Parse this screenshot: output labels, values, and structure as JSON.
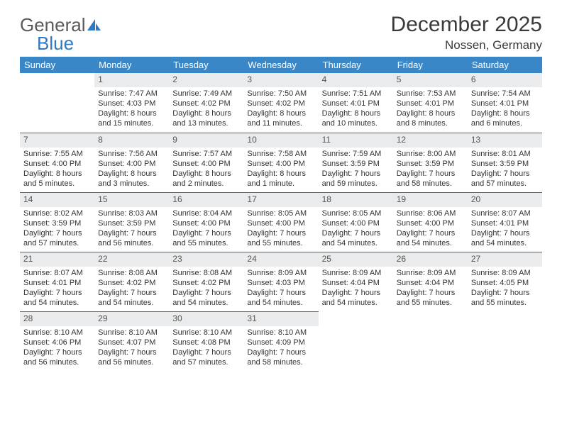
{
  "brand": {
    "part1": "General",
    "part2": "Blue"
  },
  "title": {
    "month": "December 2025",
    "location": "Nossen, Germany"
  },
  "colors": {
    "header_bg": "#3a87c8",
    "header_text": "#ffffff",
    "daynum_bg": "#e9ebec",
    "row_divider": "#2f6fa8",
    "brand_gray": "#5a5a5a",
    "brand_blue": "#2f78c4"
  },
  "weekdays": [
    "Sunday",
    "Monday",
    "Tuesday",
    "Wednesday",
    "Thursday",
    "Friday",
    "Saturday"
  ],
  "weeks": [
    [
      null,
      {
        "n": "1",
        "sr": "Sunrise: 7:47 AM",
        "ss": "Sunset: 4:03 PM",
        "d1": "Daylight: 8 hours",
        "d2": "and 15 minutes."
      },
      {
        "n": "2",
        "sr": "Sunrise: 7:49 AM",
        "ss": "Sunset: 4:02 PM",
        "d1": "Daylight: 8 hours",
        "d2": "and 13 minutes."
      },
      {
        "n": "3",
        "sr": "Sunrise: 7:50 AM",
        "ss": "Sunset: 4:02 PM",
        "d1": "Daylight: 8 hours",
        "d2": "and 11 minutes."
      },
      {
        "n": "4",
        "sr": "Sunrise: 7:51 AM",
        "ss": "Sunset: 4:01 PM",
        "d1": "Daylight: 8 hours",
        "d2": "and 10 minutes."
      },
      {
        "n": "5",
        "sr": "Sunrise: 7:53 AM",
        "ss": "Sunset: 4:01 PM",
        "d1": "Daylight: 8 hours",
        "d2": "and 8 minutes."
      },
      {
        "n": "6",
        "sr": "Sunrise: 7:54 AM",
        "ss": "Sunset: 4:01 PM",
        "d1": "Daylight: 8 hours",
        "d2": "and 6 minutes."
      }
    ],
    [
      {
        "n": "7",
        "sr": "Sunrise: 7:55 AM",
        "ss": "Sunset: 4:00 PM",
        "d1": "Daylight: 8 hours",
        "d2": "and 5 minutes."
      },
      {
        "n": "8",
        "sr": "Sunrise: 7:56 AM",
        "ss": "Sunset: 4:00 PM",
        "d1": "Daylight: 8 hours",
        "d2": "and 3 minutes."
      },
      {
        "n": "9",
        "sr": "Sunrise: 7:57 AM",
        "ss": "Sunset: 4:00 PM",
        "d1": "Daylight: 8 hours",
        "d2": "and 2 minutes."
      },
      {
        "n": "10",
        "sr": "Sunrise: 7:58 AM",
        "ss": "Sunset: 4:00 PM",
        "d1": "Daylight: 8 hours",
        "d2": "and 1 minute."
      },
      {
        "n": "11",
        "sr": "Sunrise: 7:59 AM",
        "ss": "Sunset: 3:59 PM",
        "d1": "Daylight: 7 hours",
        "d2": "and 59 minutes."
      },
      {
        "n": "12",
        "sr": "Sunrise: 8:00 AM",
        "ss": "Sunset: 3:59 PM",
        "d1": "Daylight: 7 hours",
        "d2": "and 58 minutes."
      },
      {
        "n": "13",
        "sr": "Sunrise: 8:01 AM",
        "ss": "Sunset: 3:59 PM",
        "d1": "Daylight: 7 hours",
        "d2": "and 57 minutes."
      }
    ],
    [
      {
        "n": "14",
        "sr": "Sunrise: 8:02 AM",
        "ss": "Sunset: 3:59 PM",
        "d1": "Daylight: 7 hours",
        "d2": "and 57 minutes."
      },
      {
        "n": "15",
        "sr": "Sunrise: 8:03 AM",
        "ss": "Sunset: 3:59 PM",
        "d1": "Daylight: 7 hours",
        "d2": "and 56 minutes."
      },
      {
        "n": "16",
        "sr": "Sunrise: 8:04 AM",
        "ss": "Sunset: 4:00 PM",
        "d1": "Daylight: 7 hours",
        "d2": "and 55 minutes."
      },
      {
        "n": "17",
        "sr": "Sunrise: 8:05 AM",
        "ss": "Sunset: 4:00 PM",
        "d1": "Daylight: 7 hours",
        "d2": "and 55 minutes."
      },
      {
        "n": "18",
        "sr": "Sunrise: 8:05 AM",
        "ss": "Sunset: 4:00 PM",
        "d1": "Daylight: 7 hours",
        "d2": "and 54 minutes."
      },
      {
        "n": "19",
        "sr": "Sunrise: 8:06 AM",
        "ss": "Sunset: 4:00 PM",
        "d1": "Daylight: 7 hours",
        "d2": "and 54 minutes."
      },
      {
        "n": "20",
        "sr": "Sunrise: 8:07 AM",
        "ss": "Sunset: 4:01 PM",
        "d1": "Daylight: 7 hours",
        "d2": "and 54 minutes."
      }
    ],
    [
      {
        "n": "21",
        "sr": "Sunrise: 8:07 AM",
        "ss": "Sunset: 4:01 PM",
        "d1": "Daylight: 7 hours",
        "d2": "and 54 minutes."
      },
      {
        "n": "22",
        "sr": "Sunrise: 8:08 AM",
        "ss": "Sunset: 4:02 PM",
        "d1": "Daylight: 7 hours",
        "d2": "and 54 minutes."
      },
      {
        "n": "23",
        "sr": "Sunrise: 8:08 AM",
        "ss": "Sunset: 4:02 PM",
        "d1": "Daylight: 7 hours",
        "d2": "and 54 minutes."
      },
      {
        "n": "24",
        "sr": "Sunrise: 8:09 AM",
        "ss": "Sunset: 4:03 PM",
        "d1": "Daylight: 7 hours",
        "d2": "and 54 minutes."
      },
      {
        "n": "25",
        "sr": "Sunrise: 8:09 AM",
        "ss": "Sunset: 4:04 PM",
        "d1": "Daylight: 7 hours",
        "d2": "and 54 minutes."
      },
      {
        "n": "26",
        "sr": "Sunrise: 8:09 AM",
        "ss": "Sunset: 4:04 PM",
        "d1": "Daylight: 7 hours",
        "d2": "and 55 minutes."
      },
      {
        "n": "27",
        "sr": "Sunrise: 8:09 AM",
        "ss": "Sunset: 4:05 PM",
        "d1": "Daylight: 7 hours",
        "d2": "and 55 minutes."
      }
    ],
    [
      {
        "n": "28",
        "sr": "Sunrise: 8:10 AM",
        "ss": "Sunset: 4:06 PM",
        "d1": "Daylight: 7 hours",
        "d2": "and 56 minutes."
      },
      {
        "n": "29",
        "sr": "Sunrise: 8:10 AM",
        "ss": "Sunset: 4:07 PM",
        "d1": "Daylight: 7 hours",
        "d2": "and 56 minutes."
      },
      {
        "n": "30",
        "sr": "Sunrise: 8:10 AM",
        "ss": "Sunset: 4:08 PM",
        "d1": "Daylight: 7 hours",
        "d2": "and 57 minutes."
      },
      {
        "n": "31",
        "sr": "Sunrise: 8:10 AM",
        "ss": "Sunset: 4:09 PM",
        "d1": "Daylight: 7 hours",
        "d2": "and 58 minutes."
      },
      null,
      null,
      null
    ]
  ]
}
